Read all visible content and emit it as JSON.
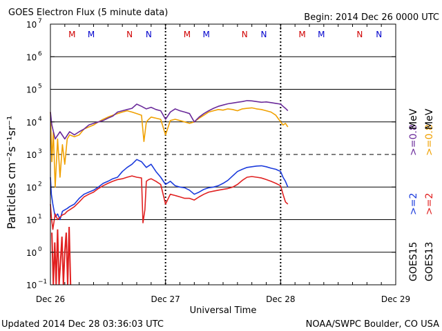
{
  "chart_data": {
    "type": "line",
    "title": "GOES Electron Flux (5 minute data)",
    "begin_label": "Begin: 2014 Dec 26 0000 UTC",
    "xlabel": "Universal Time",
    "ylabel": "Particles cm⁻²s⁻¹sr⁻¹",
    "yscale": "log",
    "ylim": [
      0.1,
      10000000
    ],
    "xlim": [
      0,
      72
    ],
    "x_unit": "hours since 2014 Dec 26 00:00 UTC",
    "x_ticks": [
      {
        "x": 0,
        "label": "Dec 26"
      },
      {
        "x": 24,
        "label": "Dec 27"
      },
      {
        "x": 48,
        "label": "Dec 28"
      },
      {
        "x": 72,
        "label": "Dec 29"
      }
    ],
    "y_ticks": [
      {
        "exp": -1,
        "label": "10",
        "sup": "−1"
      },
      {
        "exp": 0,
        "label": "10",
        "sup": "0"
      },
      {
        "exp": 1,
        "label": "10",
        "sup": "1"
      },
      {
        "exp": 2,
        "label": "10",
        "sup": "2"
      },
      {
        "exp": 3,
        "label": "10",
        "sup": "3"
      },
      {
        "exp": 4,
        "label": "10",
        "sup": "4"
      },
      {
        "exp": 5,
        "label": "10",
        "sup": "5"
      },
      {
        "exp": 6,
        "label": "10",
        "sup": "6"
      },
      {
        "exp": 7,
        "label": "10",
        "sup": "7"
      }
    ],
    "threshold_line": 1000,
    "mn_markers": [
      {
        "x": 4.5,
        "label": "M",
        "color": "#d00000"
      },
      {
        "x": 8.5,
        "label": "M",
        "color": "#0000cc"
      },
      {
        "x": 16.5,
        "label": "N",
        "color": "#d00000"
      },
      {
        "x": 20.5,
        "label": "N",
        "color": "#0000cc"
      },
      {
        "x": 28.5,
        "label": "M",
        "color": "#d00000"
      },
      {
        "x": 32.5,
        "label": "M",
        "color": "#0000cc"
      },
      {
        "x": 40.5,
        "label": "N",
        "color": "#d00000"
      },
      {
        "x": 44.5,
        "label": "N",
        "color": "#0000cc"
      },
      {
        "x": 52.5,
        "label": "M",
        "color": "#d00000"
      },
      {
        "x": 56.5,
        "label": "M",
        "color": "#0000cc"
      },
      {
        "x": 64.5,
        "label": "N",
        "color": "#d00000"
      },
      {
        "x": 68.5,
        "label": "N",
        "color": "#0000cc"
      }
    ],
    "dotted_verticals": [
      24,
      48
    ],
    "series": [
      {
        "name": "GOES13 >=0.8 MeV",
        "color": "#f0a000",
        "x": [
          0,
          0.3,
          0.6,
          1,
          1.5,
          2,
          2.5,
          3,
          3.5,
          4,
          5,
          6,
          7,
          8,
          9,
          10,
          11,
          12,
          13,
          14,
          15,
          16,
          17,
          18,
          19,
          19.5,
          20,
          20.5,
          21,
          22,
          23,
          24,
          25,
          26,
          27,
          28,
          29,
          30,
          31,
          32,
          33,
          34,
          35,
          36,
          37,
          38,
          39,
          40,
          41,
          42,
          43,
          44,
          45,
          46,
          47,
          48,
          48.5,
          49,
          49.5
        ],
        "y": [
          20000,
          600,
          5000,
          100,
          3000,
          200,
          2000,
          500,
          3000,
          4000,
          3500,
          4000,
          6000,
          7000,
          8000,
          10000,
          12000,
          14000,
          16000,
          18000,
          20000,
          22000,
          20000,
          18000,
          16000,
          2500,
          10000,
          12000,
          14000,
          13000,
          12000,
          4000,
          11000,
          12000,
          11000,
          10000,
          9000,
          10000,
          13000,
          16000,
          20000,
          22000,
          24000,
          23000,
          25000,
          24000,
          22000,
          25000,
          26000,
          27000,
          25000,
          24000,
          22000,
          20000,
          16000,
          10000,
          8000,
          9000,
          7000
        ]
      },
      {
        "name": "GOES15 >=0.8 MeV",
        "color": "#6a2a9a",
        "x": [
          0,
          0.3,
          1,
          2,
          3,
          4,
          5,
          6,
          7,
          8,
          9,
          10,
          11,
          12,
          13,
          14,
          15,
          16,
          17,
          18,
          19,
          20,
          21,
          22,
          23,
          24,
          25,
          26,
          27,
          28,
          29,
          30,
          31,
          32,
          33,
          34,
          35,
          36,
          37,
          38,
          39,
          40,
          41,
          42,
          43,
          44,
          45,
          46,
          47,
          48,
          48.5,
          49,
          49.5
        ],
        "y": [
          20000,
          8000,
          3000,
          5000,
          3000,
          5000,
          4000,
          5000,
          6000,
          8000,
          9000,
          10000,
          11000,
          13000,
          15000,
          20000,
          22000,
          24000,
          26000,
          35000,
          30000,
          25000,
          28000,
          24000,
          22000,
          12000,
          20000,
          25000,
          22000,
          20000,
          18000,
          10000,
          14000,
          18000,
          22000,
          26000,
          30000,
          33000,
          36000,
          38000,
          40000,
          42000,
          45000,
          44000,
          42000,
          40000,
          41000,
          39000,
          37000,
          35000,
          30000,
          26000,
          22000
        ]
      },
      {
        "name": "GOES15 >=2 MeV",
        "color": "#1a3adc",
        "x": [
          0,
          0.2,
          0.5,
          1,
          1.5,
          2,
          2.5,
          3,
          3.5,
          4,
          5,
          6,
          7,
          8,
          9,
          10,
          11,
          12,
          13,
          14,
          15,
          16,
          17,
          18,
          19,
          20,
          21,
          22,
          23,
          24,
          25,
          26,
          27,
          28,
          29,
          30,
          31,
          32,
          33,
          34,
          35,
          36,
          37,
          38,
          39,
          40,
          41,
          42,
          43,
          44,
          45,
          46,
          47,
          48,
          48.5,
          49,
          49.5
        ],
        "y": [
          200,
          60,
          30,
          12,
          15,
          10,
          18,
          20,
          22,
          25,
          30,
          45,
          60,
          70,
          80,
          100,
          130,
          150,
          180,
          200,
          300,
          400,
          500,
          700,
          600,
          400,
          500,
          300,
          200,
          120,
          150,
          110,
          100,
          95,
          80,
          60,
          70,
          85,
          95,
          100,
          110,
          130,
          160,
          220,
          300,
          350,
          400,
          420,
          440,
          450,
          420,
          380,
          350,
          300,
          200,
          150,
          100
        ]
      },
      {
        "name": "GOES13 >=2 MeV",
        "color": "#e02020",
        "x": [
          0,
          0.2,
          0.5,
          1,
          1.5,
          2,
          2.5,
          3,
          3.5,
          4,
          5,
          6,
          7,
          8,
          9,
          10,
          11,
          12,
          13,
          14,
          15,
          16,
          17,
          18,
          19,
          19.3,
          19.7,
          20,
          20.5,
          21,
          22,
          23,
          24,
          25,
          26,
          27,
          28,
          29,
          30,
          31,
          32,
          33,
          34,
          35,
          36,
          37,
          38,
          39,
          40,
          41,
          42,
          43,
          44,
          45,
          46,
          47,
          48,
          48.5,
          49,
          49.5
        ],
        "y": [
          30,
          12,
          5,
          15,
          10,
          12,
          14,
          15,
          18,
          20,
          25,
          35,
          50,
          60,
          70,
          90,
          110,
          130,
          150,
          170,
          180,
          200,
          220,
          200,
          190,
          8,
          20,
          150,
          170,
          180,
          150,
          120,
          30,
          60,
          55,
          50,
          45,
          45,
          40,
          50,
          60,
          70,
          75,
          80,
          85,
          90,
          100,
          120,
          160,
          200,
          210,
          200,
          190,
          170,
          150,
          130,
          110,
          60,
          35,
          30
        ]
      }
    ],
    "low_scatter_red": {
      "color": "#e02020",
      "x": [
        0.3,
        0.6,
        0.9,
        1.2,
        1.5,
        1.8,
        2.1,
        2.4,
        2.7,
        3.0,
        3.3,
        3.6,
        3.9,
        4.2
      ],
      "y": [
        4,
        0.1,
        2,
        0.1,
        5,
        0.1,
        0.5,
        3,
        0.1,
        1,
        4,
        0.1,
        6,
        0.1
      ]
    },
    "right_labels": [
      {
        "text": "GOES15",
        "color": "#000000"
      },
      {
        "text": ">=2",
        "color": "#1a3adc"
      },
      {
        "text": ">=0.8",
        "color": "#6a2a9a"
      },
      {
        "text": "MeV",
        "color": "#000000"
      },
      {
        "text": "GOES13",
        "color": "#000000"
      },
      {
        "text": ">=2",
        "color": "#e02020"
      },
      {
        "text": ">=0.8",
        "color": "#f0a000"
      },
      {
        "text": "MeV",
        "color": "#000000"
      }
    ]
  },
  "footer": {
    "updated": "Updated 2014 Dec 28 03:36:03 UTC",
    "credit": "NOAA/SWPC Boulder, CO USA"
  }
}
